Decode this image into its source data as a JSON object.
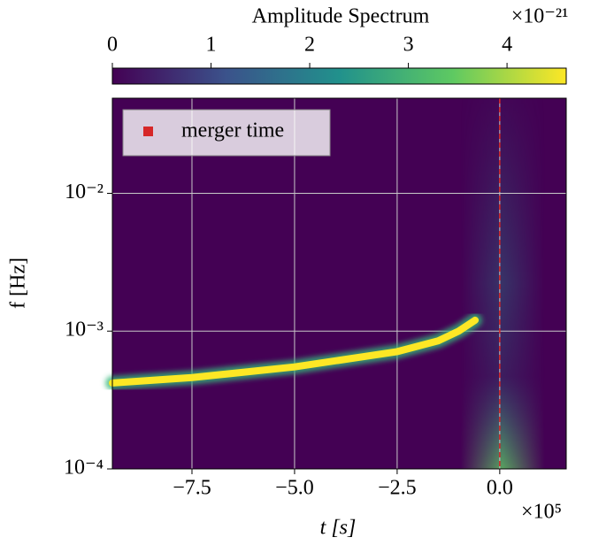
{
  "chart_data": {
    "type": "spectrogram",
    "colorbar_label": "Amplitude Spectrum",
    "colorbar_offset": "×10⁻²¹",
    "colormap": "viridis",
    "clim": [
      0,
      4.6
    ],
    "cticks": [
      0,
      1,
      2,
      3,
      4
    ],
    "xlabel": "t [s]",
    "x_offset": "×10⁵",
    "ylabel": "f [Hz]",
    "xlim": [
      -944000,
      162000
    ],
    "xticks": [
      {
        "value": -750000,
        "label": "−7.5"
      },
      {
        "value": -500000,
        "label": "−5.0"
      },
      {
        "value": -250000,
        "label": "−2.5"
      },
      {
        "value": 0,
        "label": "0.0"
      }
    ],
    "ylim": [
      0.0001,
      0.049
    ],
    "yscale": "log",
    "yticks": [
      {
        "value": 0.0001,
        "label": "10⁻⁴"
      },
      {
        "value": 0.001,
        "label": "10⁻³"
      },
      {
        "value": 0.01,
        "label": "10⁻²"
      }
    ],
    "grid": true,
    "track": {
      "x": [
        -944000,
        -750000,
        -500000,
        -250000,
        -150000,
        -100000,
        -60000
      ],
      "y": [
        0.00042,
        0.00046,
        0.00055,
        0.00071,
        0.00085,
        0.001,
        0.0012
      ],
      "color": "#fde725"
    },
    "merger": {
      "name": "merger time",
      "x": 0,
      "color": "#d62728"
    },
    "legend": "upper left"
  }
}
